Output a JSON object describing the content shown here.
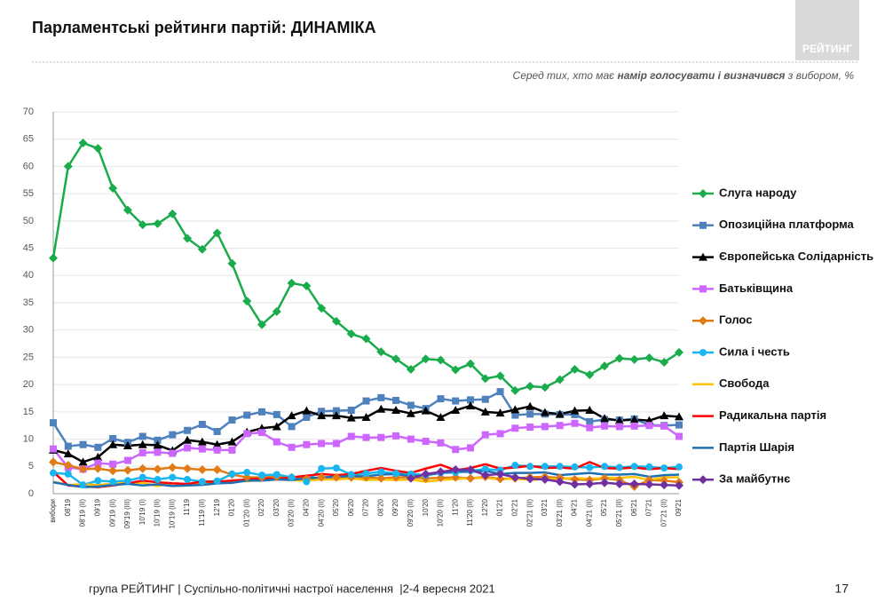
{
  "header": {
    "title": "Парламентські рейтинги партій: ДИНАМІКА",
    "logo": "РЕЙТИНГ",
    "subtitle": [
      "Серед тих, хто має ",
      "намір голосувати і визначився",
      " з вибором, %"
    ]
  },
  "footer": {
    "text": "група РЕЙТИНГ | Суспільно-політичні настрої населення  |2-4 вересня 2021",
    "page": "17"
  },
  "chart_data": {
    "type": "line",
    "grid": true,
    "legend": "right",
    "categories": [
      "вибори",
      "08'19",
      "08'19 (ІІ)",
      "09'19",
      "09'19 (ІІ)",
      "09'19 (ІІІ)",
      "10'19 (І)",
      "10'19 (ІІ)",
      "10'19 (ІІІ)",
      "11'19",
      "11'19 (ІІ)",
      "12'19",
      "01'20",
      "01'20 (ІІ)",
      "02'20",
      "03'20",
      "03'20 (ІІ)",
      "04'20",
      "04'20 (ІІ)",
      "05'20",
      "06'20",
      "07'20",
      "08'20",
      "09'20",
      "09'20 (ІІ)",
      "10'20",
      "10'20 (ІІ)",
      "11'20",
      "11'20 (ІІ)",
      "12'20",
      "01'21",
      "02'21",
      "02'21 (ІІ)",
      "03'21",
      "03'21 (ІІ)",
      "04'21",
      "04'21 (ІІ)",
      "05'21",
      "05'21 (ІІ)",
      "06'21",
      "07'21",
      "07'21 (ІІ)",
      "09'21"
    ],
    "ylim": [
      0,
      70
    ],
    "yticks": [
      0,
      5,
      10,
      15,
      20,
      25,
      30,
      35,
      40,
      45,
      50,
      55,
      60,
      65,
      70
    ],
    "series": [
      {
        "name": "Слуга народу",
        "color": "#1aab4b",
        "marker": "diamond",
        "values": [
          43.2,
          60,
          64.3,
          63.3,
          56,
          52,
          49.3,
          49.5,
          51.3,
          46.8,
          44.8,
          47.8,
          42.2,
          35.3,
          31,
          33.4,
          38.6,
          38.1,
          34,
          31.6,
          29.3,
          28.4,
          26,
          24.7,
          22.8,
          24.7,
          24.5,
          22.7,
          23.8,
          21.1,
          21.6,
          18.9,
          19.7,
          19.5,
          20.9,
          22.8,
          21.8,
          23.4,
          24.8,
          24.6,
          24.9,
          24.1,
          25.9
        ]
      },
      {
        "name": "Опозиційна платформа",
        "color": "#4f81bd",
        "marker": "square",
        "values": [
          13,
          8.7,
          9,
          8.5,
          10.1,
          9.4,
          10.5,
          9.8,
          10.8,
          11.6,
          12.7,
          11.4,
          13.5,
          14.4,
          15,
          14.5,
          12.3,
          14,
          15.1,
          15.2,
          15.3,
          17,
          17.6,
          17.1,
          16.2,
          15.6,
          17.4,
          17,
          17.2,
          17.3,
          18.7,
          14.4,
          14.6,
          14.6,
          14.5,
          14.5,
          13.2,
          13.6,
          13.5,
          13.7,
          12.6,
          12.5,
          12.6
        ]
      },
      {
        "name": "Європейська Солідарність",
        "color": "#000000",
        "marker": "triangle",
        "values": [
          8,
          7.3,
          5.8,
          6.7,
          9,
          8.8,
          9,
          8.9,
          7.9,
          9.8,
          9.5,
          9,
          9.5,
          11.3,
          12,
          12.3,
          14.3,
          15.2,
          14.3,
          14.3,
          13.9,
          14,
          15.5,
          15.3,
          14.7,
          15.2,
          14,
          15.3,
          16.1,
          15,
          14.8,
          15.4,
          16,
          14.9,
          14.6,
          15.2,
          15.3,
          13.8,
          13.4,
          13.6,
          13.4,
          14.3,
          14.1
        ]
      },
      {
        "name": "Батьківщина",
        "color": "#cc66ff",
        "marker": "square",
        "values": [
          8.2,
          4.8,
          4.5,
          5.6,
          5.4,
          6.1,
          7.5,
          7.6,
          7.4,
          8.4,
          8.2,
          8,
          8,
          11,
          11.2,
          9.5,
          8.5,
          9,
          9.2,
          9.2,
          10.5,
          10.3,
          10.3,
          10.6,
          10,
          9.6,
          9.3,
          8.1,
          8.4,
          10.8,
          11,
          12,
          12.2,
          12.3,
          12.5,
          12.9,
          12.1,
          12.4,
          12.3,
          12.4,
          12.5,
          12.4,
          10.5
        ]
      },
      {
        "name": "Голос",
        "color": "#e07b17",
        "marker": "diamond",
        "values": [
          5.8,
          5.2,
          4.5,
          4.6,
          4.2,
          4.3,
          4.6,
          4.5,
          4.8,
          4.6,
          4.4,
          4.4,
          3.5,
          3,
          3,
          3.1,
          3,
          2.7,
          3,
          3,
          3,
          3,
          2.8,
          3,
          3,
          2.8,
          2.9,
          3,
          2.8,
          3.1,
          2.7,
          2.8,
          3,
          3.1,
          2.9,
          2.6,
          2.5,
          2.8,
          2.5,
          1.3,
          2.5,
          2.4,
          2.1
        ]
      },
      {
        "name": "Сила і честь",
        "color": "#19b5f0",
        "marker": "circle",
        "values": [
          3.8,
          3.6,
          1.6,
          2.4,
          2.2,
          2.4,
          3,
          2.6,
          3,
          2.6,
          2.2,
          2.3,
          3.6,
          3.9,
          3.4,
          3.5,
          3,
          2.2,
          4.6,
          4.7,
          3.5,
          3.7,
          4,
          3.7,
          3.6,
          3.4,
          3.8,
          3.9,
          4.2,
          4.5,
          4.3,
          5.2,
          5,
          5,
          5,
          4.9,
          4.8,
          5,
          4.8,
          5,
          4.9,
          4.7,
          4.9
        ]
      },
      {
        "name": "Свобода",
        "color": "#ffc000",
        "marker": "none",
        "values": [
          2.2,
          1.6,
          1.7,
          1.6,
          1.8,
          2,
          2,
          1.4,
          1.9,
          1.8,
          1.8,
          2,
          2.2,
          2.3,
          2.5,
          2.6,
          2.5,
          2.4,
          2.6,
          2.6,
          2.8,
          2.5,
          2.6,
          2.5,
          2.6,
          2.2,
          2.5,
          2.7,
          2.8,
          2.9,
          2.6,
          2.8,
          2.5,
          2.7,
          2.7,
          2.9,
          2.7,
          2.9,
          2.9,
          3.1,
          2.5,
          3,
          3
        ]
      },
      {
        "name": "Радикальна партія",
        "color": "#ff0000",
        "marker": "none",
        "values": [
          4,
          1.5,
          1.3,
          1.2,
          1.5,
          1.9,
          2.4,
          2.1,
          1.9,
          1.8,
          2.2,
          2.2,
          2.4,
          2.6,
          2.8,
          2.7,
          3,
          3.3,
          3.6,
          3.4,
          3.6,
          4.2,
          4.7,
          4.2,
          3.8,
          4.6,
          5.3,
          4.3,
          4.7,
          5.4,
          4.6,
          4.8,
          5.1,
          4.7,
          4.8,
          4.6,
          5.8,
          4.7,
          4.6,
          4.8,
          4.5,
          4.7,
          4.5
        ]
      },
      {
        "name": "Партія Шарія",
        "color": "#1f6fb5",
        "marker": "none",
        "values": [
          2.1,
          1.6,
          1.2,
          1.3,
          1.6,
          1.8,
          1.5,
          1.7,
          1.4,
          1.5,
          1.6,
          1.9,
          2,
          2.4,
          2.4,
          2.6,
          2.5,
          2.8,
          3,
          3.1,
          3.2,
          3.2,
          3.5,
          3.6,
          3.2,
          3.4,
          3.8,
          4,
          4,
          4.2,
          3.6,
          3.8,
          3.8,
          3.9,
          3.4,
          3.6,
          3.8,
          3.5,
          3.5,
          3.6,
          3.1,
          3.4,
          3.5
        ]
      },
      {
        "name": "За майбутнє",
        "color": "#7030a0",
        "marker": "diamond",
        "values": [
          null,
          null,
          null,
          null,
          null,
          null,
          null,
          null,
          null,
          null,
          null,
          null,
          null,
          null,
          null,
          null,
          null,
          null,
          null,
          null,
          null,
          null,
          null,
          null,
          2.8,
          3.6,
          4,
          4.4,
          4.4,
          3.4,
          3.6,
          3,
          2.7,
          2.6,
          2.2,
          1.7,
          1.8,
          2,
          1.8,
          1.8,
          1.7,
          1.6,
          1.5
        ]
      }
    ]
  }
}
